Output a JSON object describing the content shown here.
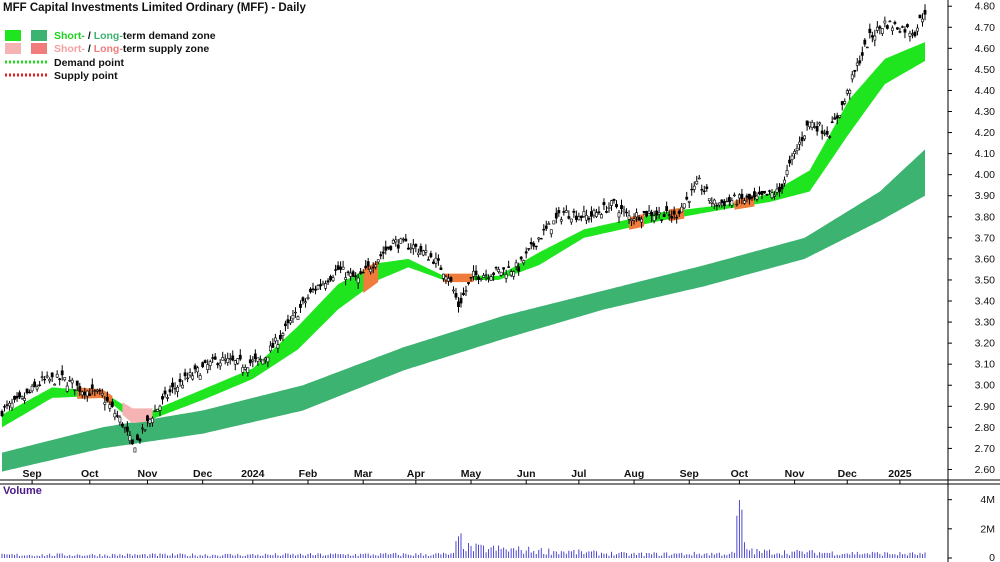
{
  "chart_data": {
    "type": "line",
    "title": "MFF Capital Investments Limited Ordinary (MFF) - Daily",
    "legend": {
      "placement": "top-left",
      "items": [
        {
          "prefix": "Short-",
          "sep": " / ",
          "mid": "Long-",
          "suffix": "term demand zone",
          "color1": "#1fe51f",
          "color2": "#3cb371"
        },
        {
          "prefix": "Short-",
          "sep": " / ",
          "mid": "Long-",
          "suffix": "term supply zone",
          "color1": "#f5b3b3",
          "color2": "#f07c7c"
        },
        {
          "label": "Demand point",
          "color": "#22dd22"
        },
        {
          "label": "Supply point",
          "color": "#dd2222"
        }
      ]
    },
    "price_axis": {
      "min": 2.55,
      "max": 4.82,
      "ticks": [
        "2.60",
        "2.70",
        "2.80",
        "2.90",
        "3.00",
        "3.10",
        "3.20",
        "3.30",
        "3.40",
        "3.50",
        "3.60",
        "3.70",
        "3.80",
        "3.90",
        "4.00",
        "4.10",
        "4.20",
        "4.30",
        "4.40",
        "4.50",
        "4.60",
        "4.70",
        "4.80"
      ]
    },
    "x_ticks": [
      "Sep",
      "Oct",
      "Nov",
      "Dec",
      "2024",
      "Feb",
      "Mar",
      "Apr",
      "May",
      "Jun",
      "Jul",
      "Aug",
      "Sep",
      "Oct",
      "Nov",
      "Dec",
      "2025"
    ],
    "x_tick_index": [
      12,
      35,
      58,
      80,
      100,
      122,
      144,
      165,
      187,
      209,
      230,
      252,
      274,
      294,
      316,
      337,
      358
    ],
    "n_bars": 369,
    "price_keypoints": [
      [
        0,
        2.88
      ],
      [
        8,
        2.93
      ],
      [
        16,
        3.02
      ],
      [
        24,
        3.03
      ],
      [
        32,
        2.98
      ],
      [
        40,
        2.95
      ],
      [
        48,
        2.82
      ],
      [
        52,
        2.71
      ],
      [
        55,
        2.75
      ],
      [
        60,
        2.86
      ],
      [
        68,
        2.98
      ],
      [
        76,
        3.05
      ],
      [
        86,
        3.12
      ],
      [
        96,
        3.1
      ],
      [
        104,
        3.12
      ],
      [
        114,
        3.28
      ],
      [
        124,
        3.45
      ],
      [
        134,
        3.55
      ],
      [
        142,
        3.5
      ],
      [
        148,
        3.58
      ],
      [
        156,
        3.68
      ],
      [
        164,
        3.66
      ],
      [
        172,
        3.6
      ],
      [
        178,
        3.52
      ],
      [
        182,
        3.38
      ],
      [
        188,
        3.52
      ],
      [
        198,
        3.54
      ],
      [
        206,
        3.56
      ],
      [
        214,
        3.7
      ],
      [
        224,
        3.82
      ],
      [
        234,
        3.8
      ],
      [
        244,
        3.86
      ],
      [
        250,
        3.8
      ],
      [
        258,
        3.82
      ],
      [
        268,
        3.8
      ],
      [
        278,
        3.96
      ],
      [
        284,
        3.86
      ],
      [
        292,
        3.88
      ],
      [
        300,
        3.88
      ],
      [
        310,
        3.92
      ],
      [
        316,
        4.1
      ],
      [
        322,
        4.25
      ],
      [
        330,
        4.2
      ],
      [
        336,
        4.35
      ],
      [
        342,
        4.55
      ],
      [
        346,
        4.65
      ],
      [
        352,
        4.72
      ],
      [
        358,
        4.7
      ],
      [
        364,
        4.68
      ],
      [
        368,
        4.78
      ]
    ],
    "short_zone_upper": [
      [
        0,
        2.86
      ],
      [
        20,
        2.99
      ],
      [
        40,
        2.97
      ],
      [
        52,
        2.88
      ],
      [
        60,
        2.88
      ],
      [
        80,
        2.98
      ],
      [
        100,
        3.08
      ],
      [
        118,
        3.28
      ],
      [
        134,
        3.48
      ],
      [
        150,
        3.58
      ],
      [
        162,
        3.6
      ],
      [
        176,
        3.52
      ],
      [
        198,
        3.52
      ],
      [
        214,
        3.63
      ],
      [
        232,
        3.74
      ],
      [
        262,
        3.82
      ],
      [
        290,
        3.86
      ],
      [
        306,
        3.91
      ],
      [
        322,
        4.02
      ],
      [
        338,
        4.36
      ],
      [
        352,
        4.55
      ],
      [
        368,
        4.63
      ]
    ],
    "short_zone_lower": [
      [
        0,
        2.8
      ],
      [
        20,
        2.94
      ],
      [
        40,
        2.95
      ],
      [
        52,
        2.83
      ],
      [
        60,
        2.84
      ],
      [
        80,
        2.93
      ],
      [
        100,
        3.03
      ],
      [
        118,
        3.17
      ],
      [
        134,
        3.36
      ],
      [
        150,
        3.5
      ],
      [
        162,
        3.56
      ],
      [
        176,
        3.5
      ],
      [
        198,
        3.5
      ],
      [
        214,
        3.57
      ],
      [
        232,
        3.7
      ],
      [
        262,
        3.78
      ],
      [
        290,
        3.84
      ],
      [
        306,
        3.87
      ],
      [
        322,
        3.92
      ],
      [
        338,
        4.2
      ],
      [
        352,
        4.43
      ],
      [
        368,
        4.54
      ]
    ],
    "long_zone_upper": [
      [
        0,
        2.68
      ],
      [
        40,
        2.8
      ],
      [
        80,
        2.88
      ],
      [
        120,
        3.0
      ],
      [
        160,
        3.18
      ],
      [
        200,
        3.33
      ],
      [
        240,
        3.45
      ],
      [
        280,
        3.57
      ],
      [
        320,
        3.7
      ],
      [
        350,
        3.92
      ],
      [
        368,
        4.12
      ]
    ],
    "long_zone_lower": [
      [
        0,
        2.59
      ],
      [
        40,
        2.7
      ],
      [
        80,
        2.77
      ],
      [
        120,
        2.88
      ],
      [
        160,
        3.07
      ],
      [
        200,
        3.22
      ],
      [
        240,
        3.36
      ],
      [
        280,
        3.47
      ],
      [
        320,
        3.6
      ],
      [
        350,
        3.78
      ],
      [
        368,
        3.9
      ]
    ],
    "supply_zones": [
      [
        30,
        44
      ],
      [
        48,
        60
      ],
      [
        144,
        150
      ],
      [
        176,
        188
      ],
      [
        250,
        256
      ],
      [
        266,
        272
      ],
      [
        292,
        300
      ]
    ],
    "volume_panel": {
      "label": "Volume",
      "ticks": [
        "4M",
        "2M",
        "0"
      ],
      "max": 4.8,
      "volume_keypoints_M": [
        [
          0,
          0.25
        ],
        [
          100,
          0.25
        ],
        [
          180,
          0.3
        ],
        [
          182,
          1.6
        ],
        [
          186,
          0.8
        ],
        [
          250,
          0.3
        ],
        [
          292,
          0.35
        ],
        [
          294,
          5.0
        ],
        [
          296,
          0.9
        ],
        [
          300,
          0.5
        ],
        [
          368,
          0.3
        ]
      ]
    }
  }
}
